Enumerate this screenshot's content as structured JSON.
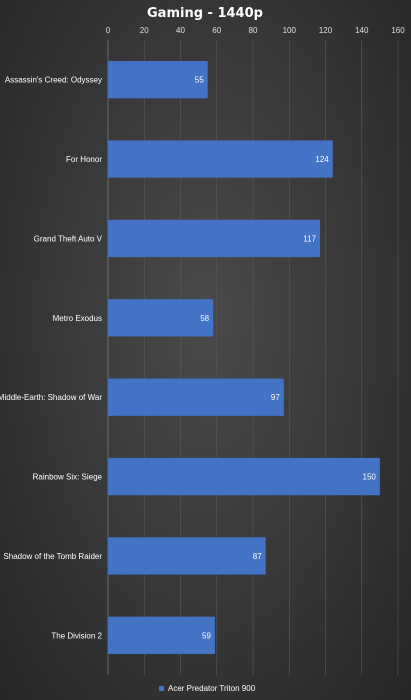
{
  "chart_data": {
    "type": "bar",
    "orientation": "horizontal",
    "title": "Gaming - 1440p",
    "categories": [
      "Assassin's Creed: Odyssey",
      "For Honor",
      "Grand Theft Auto V",
      "Metro Exodus",
      "Middle-Earth: Shadow of War",
      "Rainbow Six: Siege",
      "Shadow of the Tomb Raider",
      "The Division 2"
    ],
    "series": [
      {
        "name": "Acer Predator Triton 900",
        "values": [
          55,
          124,
          117,
          58,
          97,
          150,
          87,
          59
        ],
        "color": "#4472c4"
      }
    ],
    "xlim": [
      0,
      160
    ],
    "ticks": [
      0,
      20,
      40,
      60,
      80,
      100,
      120,
      140,
      160
    ],
    "grid": true,
    "axis_position": "top",
    "legend_position": "bottom"
  }
}
